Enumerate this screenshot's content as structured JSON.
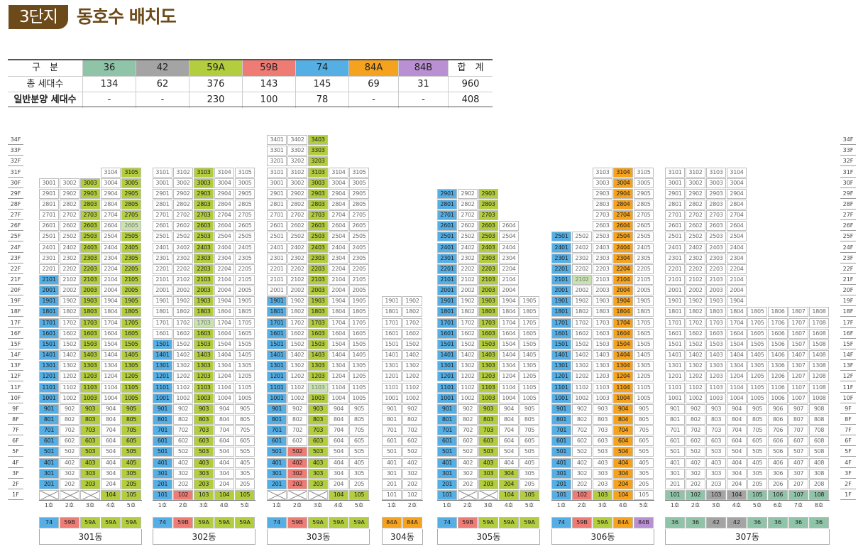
{
  "title": {
    "badge": "3단지",
    "text": "동호수 배치도"
  },
  "summary": {
    "headers": [
      "구　분",
      "36",
      "42",
      "59A",
      "59B",
      "74",
      "84A",
      "84B",
      "합　계"
    ],
    "rows": [
      {
        "label": "총 세대수",
        "values": [
          "134",
          "62",
          "376",
          "143",
          "145",
          "69",
          "31",
          "960"
        ]
      },
      {
        "label": "일반분양 세대수",
        "values": [
          "-",
          "-",
          "230",
          "100",
          "78",
          "-",
          "-",
          "408"
        ]
      }
    ]
  },
  "colors": {
    "36": "#8fc4a8",
    "42": "#a4a4a4",
    "59A": "#b2cd3e",
    "59B": "#ee7b74",
    "74": "#55aee4",
    "84A": "#f5a21e",
    "84B": "#bb8fd3",
    "header_bg": "#6d4a1a"
  },
  "floors": [
    "34F",
    "33F",
    "32F",
    "31F",
    "30F",
    "29F",
    "28F",
    "27F",
    "26F",
    "25F",
    "24F",
    "23F",
    "22F",
    "21F",
    "20F",
    "19F",
    "18F",
    "17F",
    "16F",
    "15F",
    "14F",
    "13F",
    "12F",
    "11F",
    "10F",
    "9F",
    "8F",
    "7F",
    "6F",
    "5F",
    "4F",
    "3F",
    "2F",
    "1F"
  ],
  "unit_suffix": "호",
  "buildings": [
    {
      "name": "301동",
      "units": 5,
      "types": [
        "74",
        "59B",
        "59A",
        "59A",
        "59A"
      ],
      "cols": [
        {
          "top": 30,
          "ptop": 21,
          "x": [
            1
          ]
        },
        {
          "top": 30,
          "ptop": 1,
          "x": [
            1
          ]
        },
        {
          "top": 30,
          "ptop": 30,
          "x": [
            1
          ]
        },
        {
          "top": 31,
          "ptop": 1,
          "x": []
        },
        {
          "top": 31,
          "ptop": 31,
          "x": [],
          "lg": [
            26
          ]
        }
      ]
    },
    {
      "name": "302동",
      "units": 5,
      "types": [
        "74",
        "59B",
        "59A",
        "59A",
        "59A"
      ],
      "cols": [
        {
          "top": 31,
          "ptop": 15,
          "x": []
        },
        {
          "top": 31,
          "ptop": 1,
          "x": []
        },
        {
          "top": 31,
          "ptop": 31,
          "x": [],
          "lg": [
            17
          ]
        },
        {
          "top": 31,
          "ptop": 1,
          "x": []
        },
        {
          "top": 31,
          "ptop": 1,
          "x": []
        }
      ]
    },
    {
      "name": "303동",
      "units": 5,
      "types": [
        "74",
        "59B",
        "59A",
        "59A",
        "59A"
      ],
      "cols": [
        {
          "top": 34,
          "ptop": 19,
          "x": [
            1
          ]
        },
        {
          "top": 34,
          "ptop": 5,
          "x": [
            1
          ]
        },
        {
          "top": 34,
          "ptop": 34,
          "x": [
            1
          ],
          "lg": [
            11
          ]
        },
        {
          "top": 31,
          "ptop": 1,
          "x": []
        },
        {
          "top": 31,
          "ptop": 1,
          "x": []
        }
      ]
    },
    {
      "name": "304동",
      "units": 2,
      "types": [
        "84A",
        "84A"
      ],
      "cols": [
        {
          "top": 19,
          "ptop": 0,
          "x": []
        },
        {
          "top": 19,
          "ptop": 0,
          "x": []
        }
      ]
    },
    {
      "name": "305동",
      "units": 5,
      "types": [
        "74",
        "59B",
        "59A",
        "59A",
        "59A"
      ],
      "cols": [
        {
          "top": 29,
          "ptop": 29,
          "x": []
        },
        {
          "top": 29,
          "ptop": 1,
          "x": [
            1
          ]
        },
        {
          "top": 29,
          "ptop": 29,
          "x": [
            1
          ]
        },
        {
          "top": 26,
          "ptop": 3,
          "x": []
        },
        {
          "top": 19,
          "ptop": 1,
          "x": []
        }
      ]
    },
    {
      "name": "306동",
      "units": 5,
      "types": [
        "74",
        "59B",
        "59A",
        "84A",
        "84B"
      ],
      "cols": [
        {
          "top": 25,
          "ptop": 25,
          "x": []
        },
        {
          "top": 25,
          "ptop": 1,
          "x": [],
          "lg": [
            21
          ]
        },
        {
          "top": 31,
          "ptop": 1,
          "x": []
        },
        {
          "top": 31,
          "ptop": 31,
          "x": []
        },
        {
          "top": 31,
          "ptop": 0,
          "x": []
        }
      ]
    },
    {
      "name": "307동",
      "units": 8,
      "types": [
        "36",
        "36",
        "42",
        "42",
        "36",
        "36",
        "36",
        "36"
      ],
      "cols": [
        {
          "top": 31,
          "ptop": 1,
          "x": []
        },
        {
          "top": 31,
          "ptop": 1,
          "x": []
        },
        {
          "top": 31,
          "ptop": 1,
          "x": []
        },
        {
          "top": 31,
          "ptop": 1,
          "x": []
        },
        {
          "top": 18,
          "ptop": 1,
          "x": []
        },
        {
          "top": 18,
          "ptop": 1,
          "x": []
        },
        {
          "top": 18,
          "ptop": 1,
          "x": []
        },
        {
          "top": 18,
          "ptop": 1,
          "x": []
        }
      ]
    }
  ]
}
